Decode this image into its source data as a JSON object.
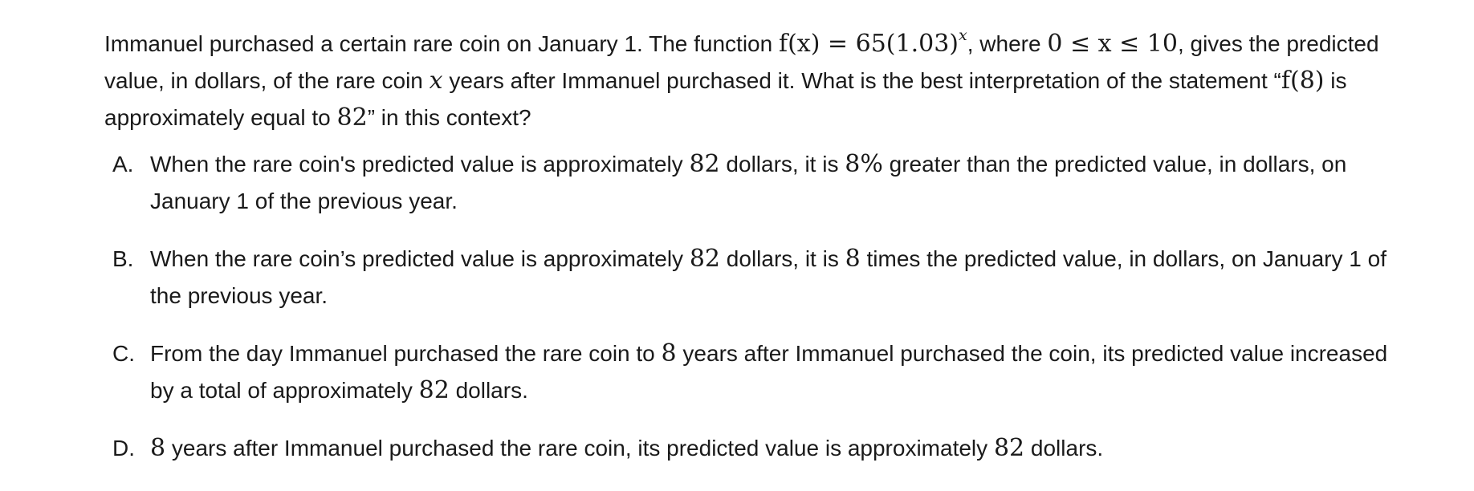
{
  "question": {
    "part1": "Immanuel purchased a certain rare coin on January 1. The function ",
    "function_lhs": "f(x) = 65(1.03)",
    "function_exp": "x",
    "part2": ", where ",
    "domain_expr": "0 ≤ x ≤ 10",
    "part3": ", gives the predicted value, in dollars, of the rare coin ",
    "var_x": "x",
    "part4": " years after Immanuel purchased it. What is the best interpretation of the statement “",
    "statement_f8": "f(8)",
    "part5": " is approximately equal to ",
    "statement_82": "82",
    "part6": "” in this context?"
  },
  "choices": [
    {
      "letter": "A.",
      "t1": "When the rare coin's predicted value is approximately ",
      "m1": "82",
      "t2": " dollars, it is ",
      "m2": "8%",
      "t3": " greater than the predicted value, in dollars, on January 1 of the previous year."
    },
    {
      "letter": "B.",
      "t1": "When the rare coin’s predicted value is approximately ",
      "m1": "82",
      "t2": " dollars, it is ",
      "m2": "8",
      "t3": " times the predicted value, in dollars, on January 1 of the previous year."
    },
    {
      "letter": "C.",
      "t1": "From the day Immanuel purchased the rare coin to ",
      "m1": "8",
      "t2": " years after Immanuel purchased the coin, its predicted value increased by a total of approximately ",
      "m2": "82",
      "t3": " dollars."
    },
    {
      "letter": "D.",
      "t1": "",
      "m1": "8",
      "t2": " years after Immanuel purchased the rare coin, its predicted value is approximately ",
      "m2": "82",
      "t3": " dollars."
    }
  ]
}
